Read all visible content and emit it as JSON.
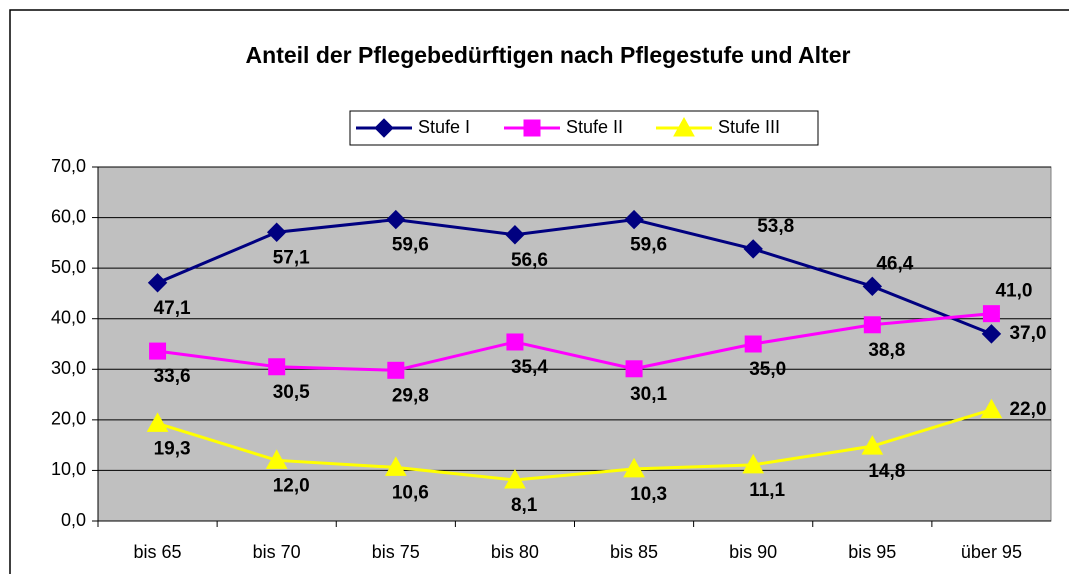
{
  "chart_data": {
    "type": "line",
    "title": "Anteil der Pflegebedürftigen nach Pflegestufe und Alter",
    "categories": [
      "bis 65",
      "bis 70",
      "bis 75",
      "bis 80",
      "bis 85",
      "bis 90",
      "bis 95",
      "über 95"
    ],
    "series": [
      {
        "name": "Stufe I",
        "color": "#000080",
        "marker": "diamond",
        "values": [
          47.1,
          57.1,
          59.6,
          56.6,
          59.6,
          53.8,
          46.4,
          37.0
        ],
        "value_labels": [
          "47,1",
          "57,1",
          "59,6",
          "56,6",
          "59,6",
          "53,8",
          "46,4",
          "37,0"
        ]
      },
      {
        "name": "Stufe II",
        "color": "#ff00ff",
        "marker": "square",
        "values": [
          33.6,
          30.5,
          29.8,
          35.4,
          30.1,
          35.0,
          38.8,
          41.0
        ],
        "value_labels": [
          "33,6",
          "30,5",
          "29,8",
          "35,4",
          "30,1",
          "35,0",
          "38,8",
          "41,0"
        ]
      },
      {
        "name": "Stufe III",
        "color": "#ffff00",
        "marker": "triangle",
        "values": [
          19.3,
          12.0,
          10.6,
          8.1,
          10.3,
          11.1,
          14.8,
          22.0
        ],
        "value_labels": [
          "19,3",
          "12,0",
          "10,6",
          "8,1",
          "10,3",
          "11,1",
          "14,8",
          "22,0"
        ]
      }
    ],
    "ylim": [
      0,
      70
    ],
    "yticks": [
      {
        "value": 0,
        "label": "0,0"
      },
      {
        "value": 10,
        "label": "10,0"
      },
      {
        "value": 20,
        "label": "20,0"
      },
      {
        "value": 30,
        "label": "30,0"
      },
      {
        "value": 40,
        "label": "40,0"
      },
      {
        "value": 50,
        "label": "50,0"
      },
      {
        "value": 60,
        "label": "60,0"
      },
      {
        "value": 70,
        "label": "70,0"
      }
    ],
    "grid": true,
    "legend": "top",
    "plot_background": "#c0c0c0"
  }
}
